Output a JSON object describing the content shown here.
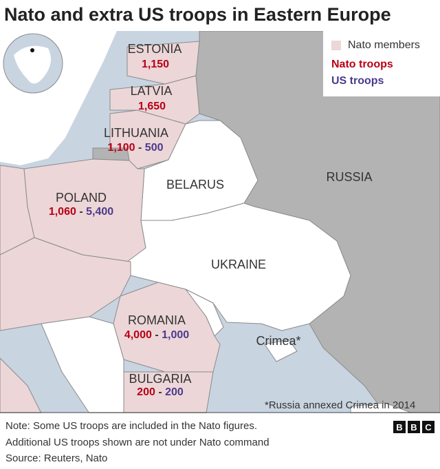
{
  "title": "Nato and extra US troops in Eastern Europe",
  "colors": {
    "nato_members": "#ecd6d8",
    "nato_troops": "#b80014",
    "us_troops": "#4b3a8c",
    "russia": "#b3b3b3",
    "sea": "#c9d4e1",
    "non_nato": "#ffffff"
  },
  "legend": {
    "members": "Nato members",
    "nato": "Nato troops",
    "us": "US troops"
  },
  "countries": [
    {
      "name": "ESTONIA",
      "nato": "1,150"
    },
    {
      "name": "LATVIA",
      "nato": "1,650"
    },
    {
      "name": "LITHUANIA",
      "nato": "1,100",
      "us": "500"
    },
    {
      "name": "POLAND",
      "nato": "1,060",
      "us": "5,400"
    },
    {
      "name": "ROMANIA",
      "nato": "4,000",
      "us": "1,000"
    },
    {
      "name": "BULGARIA",
      "nato": "200",
      "us": "200"
    }
  ],
  "other_labels": {
    "belarus": "BELARUS",
    "russia": "RUSSIA",
    "ukraine": "UKRAINE",
    "crimea": "Crimea*"
  },
  "sep": "-",
  "annotation": "*Russia annexed Crimea in 2014",
  "footer": {
    "note1": "Note: Some US troops are included in the Nato figures.",
    "note2": "Additional US troops shown are not under Nato command",
    "source": "Source: Reuters, Nato"
  },
  "logo": [
    "B",
    "B",
    "C"
  ]
}
